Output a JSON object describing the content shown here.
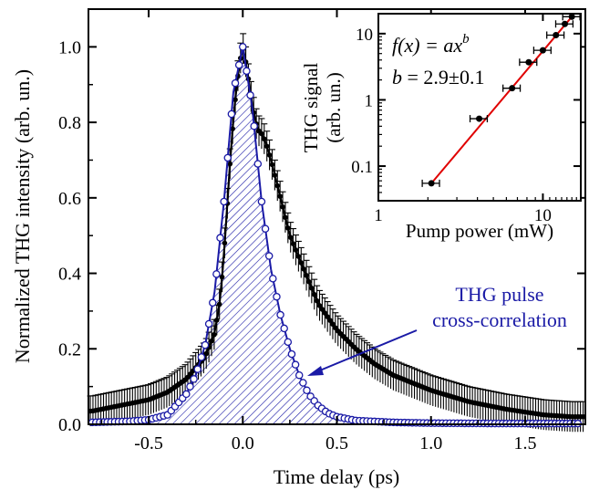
{
  "chart_data": [
    {
      "type": "line",
      "xlabel": "Time delay (ps)",
      "ylabel": "Normalized THG intensity (arb. un.)",
      "xlim": [
        -0.82,
        1.82
      ],
      "ylim": [
        0,
        1.1
      ],
      "xticks": [
        -0.5,
        0.0,
        0.5,
        1.0,
        1.5
      ],
      "xtick_labels": [
        "-0.5",
        "0.0",
        "0.5",
        "1.0",
        "1.5"
      ],
      "yticks": [
        0.0,
        0.2,
        0.4,
        0.6,
        0.8,
        1.0
      ],
      "ytick_labels": [
        "0.0",
        "0.2",
        "0.4",
        "0.6",
        "0.8",
        "1.0"
      ],
      "grid": false,
      "annotation": {
        "line1": "THG pulse",
        "line2": "cross-correlation",
        "color": "#1a1aa6"
      },
      "series": [
        {
          "style": "black filled circles with error bars",
          "color": "#000000",
          "x": [
            -0.8,
            -0.7,
            -0.6,
            -0.5,
            -0.4,
            -0.3,
            -0.25,
            -0.2,
            -0.15,
            -0.12,
            -0.1,
            -0.08,
            -0.06,
            -0.04,
            -0.02,
            0.0,
            0.02,
            0.04,
            0.06,
            0.08,
            0.1,
            0.12,
            0.15,
            0.2,
            0.25,
            0.3,
            0.35,
            0.4,
            0.5,
            0.6,
            0.7,
            0.8,
            0.9,
            1.0,
            1.2,
            1.4,
            1.6,
            1.75
          ],
          "y": [
            0.035,
            0.045,
            0.055,
            0.065,
            0.085,
            0.12,
            0.15,
            0.18,
            0.24,
            0.33,
            0.45,
            0.6,
            0.75,
            0.86,
            0.95,
            1.0,
            0.95,
            0.88,
            0.82,
            0.78,
            0.77,
            0.75,
            0.7,
            0.6,
            0.5,
            0.44,
            0.38,
            0.32,
            0.25,
            0.2,
            0.16,
            0.13,
            0.11,
            0.09,
            0.06,
            0.04,
            0.025,
            0.02
          ],
          "yerr": 0.04
        },
        {
          "style": "blue open circles with hatched fill",
          "color": "#1a1aa6",
          "x": [
            -0.8,
            -0.6,
            -0.5,
            -0.4,
            -0.3,
            -0.25,
            -0.2,
            -0.15,
            -0.1,
            -0.05,
            0.0,
            0.05,
            0.1,
            0.15,
            0.2,
            0.25,
            0.3,
            0.35,
            0.4,
            0.45,
            0.5,
            0.6,
            0.8,
            1.0,
            1.4,
            1.8
          ],
          "y": [
            0.005,
            0.008,
            0.012,
            0.025,
            0.08,
            0.13,
            0.21,
            0.35,
            0.59,
            0.88,
            1.0,
            0.84,
            0.59,
            0.41,
            0.29,
            0.2,
            0.13,
            0.08,
            0.05,
            0.03,
            0.02,
            0.01,
            0.005,
            0.003,
            0.002,
            0.002
          ]
        }
      ]
    },
    {
      "type": "scatter",
      "inset": true,
      "xlabel": "Pump power (mW)",
      "ylabel": [
        "THG signal",
        "(arb. un.)"
      ],
      "xscale": "log",
      "yscale": "log",
      "xlim": [
        1,
        17
      ],
      "ylim": [
        0.03,
        20
      ],
      "xticks": [
        1,
        10
      ],
      "xtick_labels": [
        "1",
        "10"
      ],
      "yticks": [
        0.1,
        1,
        10
      ],
      "ytick_labels": [
        "0.1",
        "1",
        "10"
      ],
      "fit_label": {
        "lhs": "f(x) = ax",
        "sup": "b",
        "b_name": "b",
        "b_value": " = 2.9±0.1"
      },
      "fit_color": "#e00000",
      "fit_x": [
        2.1,
        15.0
      ],
      "fit_y": [
        0.055,
        18.0
      ],
      "points_x": [
        2.1,
        4.1,
        6.5,
        8.2,
        10.0,
        12.0,
        13.6,
        15.0
      ],
      "points_y": [
        0.055,
        0.52,
        1.5,
        3.7,
        5.6,
        9.5,
        14.0,
        18.0
      ],
      "xerr_frac": 0.12
    }
  ]
}
